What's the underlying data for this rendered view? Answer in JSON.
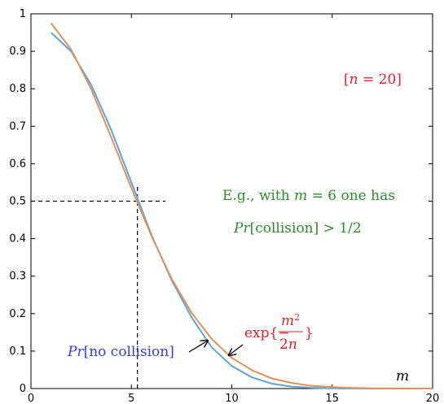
{
  "chart_data": {
    "type": "line",
    "title": "",
    "xlabel": "m",
    "ylabel": "",
    "xlim": [
      0,
      20
    ],
    "ylim": [
      0,
      1
    ],
    "x_ticks": [
      "0",
      "5",
      "10",
      "15",
      "20"
    ],
    "y_ticks": [
      "0",
      "0.1",
      "0.2",
      "0.3",
      "0.4",
      "0.5",
      "0.6",
      "0.7",
      "0.8",
      "0.9",
      "1"
    ],
    "grid": false,
    "series": [
      {
        "name": "Pr[no collision]",
        "color": "#5fa3d9",
        "x": [
          1,
          2,
          3,
          4,
          5,
          6,
          7,
          8,
          9,
          10,
          11,
          12,
          13,
          14,
          15,
          16,
          17,
          18,
          19,
          20
        ],
        "y": [
          0.95,
          0.9,
          0.81,
          0.69,
          0.55,
          0.41,
          0.29,
          0.19,
          0.11,
          0.06,
          0.03,
          0.013,
          0.005,
          0.002,
          0.0006,
          0.0002,
          0.0,
          0.0,
          0.0,
          0.0
        ]
      },
      {
        "name": "exp{−m²/2n}",
        "color": "#e0915c",
        "x": [
          1,
          2,
          3,
          4,
          5,
          6,
          7,
          8,
          9,
          10,
          11,
          12,
          13,
          14,
          15,
          16,
          17,
          18,
          19,
          20
        ],
        "y": [
          0.975,
          0.905,
          0.799,
          0.67,
          0.535,
          0.407,
          0.294,
          0.202,
          0.132,
          0.082,
          0.049,
          0.027,
          0.015,
          0.007,
          0.0036,
          0.0017,
          0.0007,
          0.0003,
          0.0001,
          0.0
        ]
      }
    ],
    "reference_lines": {
      "y": 0.5,
      "x": 5.3,
      "style": "dashed"
    },
    "annotations": {
      "n_label": "[n = 20]",
      "example_line1": "E.g., with m = 6 one has",
      "example_line2": "Pr[collision] > 1/2",
      "label_no_collision": "Pr[no collision]",
      "label_exp": "exp{−m²/2n}"
    }
  },
  "colors": {
    "annotation_red": "#e8202a",
    "annotation_green": "#2e8b2e",
    "annotation_blue": "#3a3ae8"
  }
}
